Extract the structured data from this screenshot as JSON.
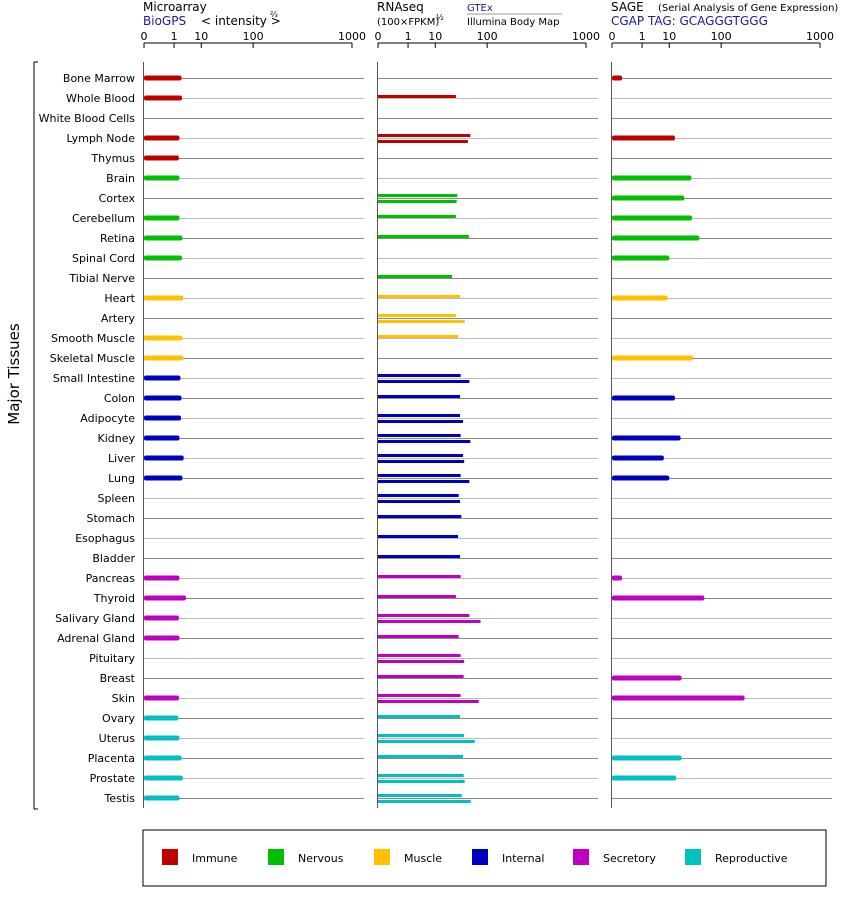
{
  "headers": {
    "microarray": {
      "title": "Microarray",
      "source": "BioGPS",
      "unit": "< intensity >",
      "exponent": "⅔"
    },
    "rnaseq": {
      "title": "RNAseq",
      "unit": "(100×FPKM)",
      "exponent": "½",
      "source_top": "GTEx",
      "source_bottom": "Illumina Body Map"
    },
    "sage": {
      "title": "SAGE",
      "subtitle": "(Serial Analysis of Gene Expression)",
      "tag": "CGAP TAG: GCAGGGTGGG"
    }
  },
  "side_label": "Major Tissues",
  "axis": {
    "ticks": [
      0,
      1,
      10,
      100,
      1000
    ],
    "tick_labels": [
      "0",
      "1",
      "10",
      "100",
      "1000"
    ]
  },
  "legend": [
    {
      "name": "Immune",
      "color": "#c00000"
    },
    {
      "name": "Nervous",
      "color": "#00c000"
    },
    {
      "name": "Muscle",
      "color": "#ffc000"
    },
    {
      "name": "Internal",
      "color": "#0000c0"
    },
    {
      "name": "Secretory",
      "color": "#c000c0"
    },
    {
      "name": "Reproductive",
      "color": "#00c0c0"
    }
  ],
  "chart_data": {
    "type": "bar",
    "orientation": "horizontal",
    "xscale": "power-transformed (0,1,10,100,1000)",
    "xlim": [
      0,
      1000
    ],
    "categories": [
      "Bone Marrow",
      "Whole Blood",
      "White Blood Cells",
      "Lymph Node",
      "Thymus",
      "Brain",
      "Cortex",
      "Cerebellum",
      "Retina",
      "Spinal Cord",
      "Tibial Nerve",
      "Heart",
      "Artery",
      "Smooth Muscle",
      "Skeletal Muscle",
      "Small Intestine",
      "Colon",
      "Adipocyte",
      "Kidney",
      "Liver",
      "Lung",
      "Spleen",
      "Stomach",
      "Esophagus",
      "Bladder",
      "Pancreas",
      "Thyroid",
      "Salivary Gland",
      "Adrenal Gland",
      "Pituitary",
      "Breast",
      "Skin",
      "Ovary",
      "Uterus",
      "Placenta",
      "Prostate",
      "Testis"
    ],
    "groups": [
      "Immune",
      "Immune",
      "Immune",
      "Immune",
      "Immune",
      "Nervous",
      "Nervous",
      "Nervous",
      "Nervous",
      "Nervous",
      "Nervous",
      "Muscle",
      "Muscle",
      "Muscle",
      "Muscle",
      "Internal",
      "Internal",
      "Internal",
      "Internal",
      "Internal",
      "Internal",
      "Internal",
      "Internal",
      "Internal",
      "Internal",
      "Secretory",
      "Secretory",
      "Secretory",
      "Secretory",
      "Secretory",
      "Secretory",
      "Secretory",
      "Reproductive",
      "Reproductive",
      "Reproductive",
      "Reproductive",
      "Reproductive"
    ],
    "series": [
      {
        "name": "Microarray",
        "values": [
          [
            2.2
          ],
          [
            2.3
          ],
          [],
          [
            1.8
          ],
          [
            1.7
          ],
          [
            1.8
          ],
          [],
          [
            1.8
          ],
          [
            2.4
          ],
          [
            2.3
          ],
          [],
          [
            2.6
          ],
          [],
          [
            2.4
          ],
          [
            2.6
          ],
          [
            2.0
          ],
          [
            2.2
          ],
          [
            2.1
          ],
          [
            1.8
          ],
          [
            2.7
          ],
          [
            2.4
          ],
          [],
          [],
          [],
          [],
          [
            1.8
          ],
          [
            3.3
          ],
          [
            1.7
          ],
          [
            1.8
          ],
          [],
          [],
          [
            1.7
          ],
          [
            1.6
          ],
          [
            1.8
          ],
          [
            2.2
          ],
          [
            2.5
          ],
          [
            1.8
          ]
        ]
      },
      {
        "name": "RNAseq",
        "values": [
          [],
          [
            30
          ],
          [],
          [
            55,
            50
          ],
          [],
          [],
          [
            32,
            31
          ],
          [
            30
          ],
          [
            52
          ],
          [],
          [
            25
          ],
          [
            36
          ],
          [
            30,
            44
          ],
          [
            33
          ],
          [],
          [
            37,
            53
          ],
          [
            36
          ],
          [
            36,
            41
          ],
          [
            37,
            55
          ],
          [
            41,
            43
          ],
          [
            37,
            53
          ],
          [
            34,
            36
          ],
          [
            38
          ],
          [
            33
          ],
          [
            36
          ],
          [
            37
          ],
          [
            30
          ],
          [
            53,
            80
          ],
          [
            34
          ],
          [
            37,
            43
          ],
          [
            42
          ],
          [
            37,
            75
          ],
          [
            36
          ],
          [
            43,
            65
          ],
          [
            41
          ],
          [
            42,
            44
          ],
          [
            39,
            56
          ]
        ]
      },
      {
        "name": "SAGE",
        "values": [
          [
            0.02
          ],
          [],
          [],
          [
            14
          ],
          [],
          [
            32
          ],
          [
            23
          ],
          [
            33
          ],
          [
            45
          ],
          [
            10
          ],
          [],
          [
            9
          ],
          [],
          [],
          [
            35
          ],
          [],
          [
            14
          ],
          [],
          [
            19
          ],
          [
            7
          ],
          [
            10
          ],
          [],
          [],
          [],
          [],
          [
            0.02
          ],
          [
            55
          ],
          [],
          [],
          [],
          [
            20
          ],
          [
            200
          ],
          [],
          [],
          [
            20
          ],
          [
            15
          ],
          []
        ]
      }
    ]
  }
}
